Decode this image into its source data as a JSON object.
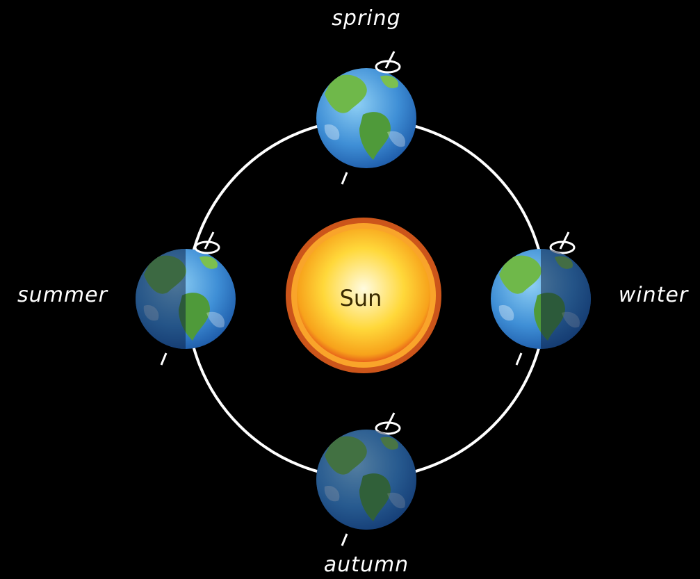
{
  "sun": {
    "label": "Sun"
  },
  "seasons": [
    {
      "label": "spring"
    },
    {
      "label": "summer"
    },
    {
      "label": "winter"
    },
    {
      "label": "autumn"
    }
  ]
}
